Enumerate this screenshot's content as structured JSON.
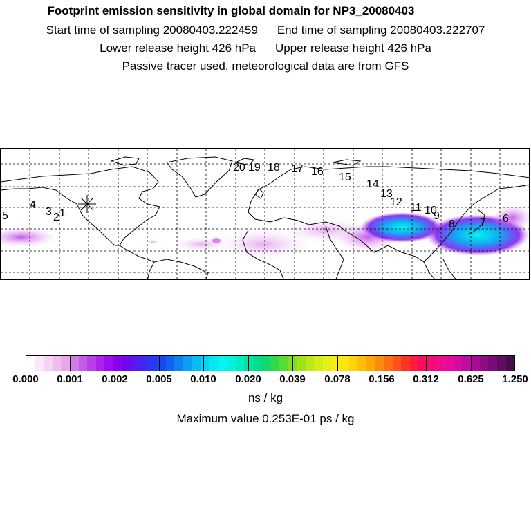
{
  "title": "Footprint emission sensitivity in global domain for NP3_20080403",
  "sampling": {
    "start": "Start time of sampling 20080403.222459",
    "end": "End time of sampling 20080403.222707"
  },
  "release": {
    "lower": "Lower release height  426 hPa",
    "upper": "Upper release height  426 hPa"
  },
  "note": "Passive tracer used, meteorological data are from GFS",
  "map": {
    "point_labels": [
      "20",
      "19",
      "18",
      "17",
      "16",
      "15",
      "14",
      "13",
      "12",
      "11",
      "10",
      "9",
      "8",
      "7",
      "6",
      "5",
      "4",
      "3",
      "2",
      "1"
    ],
    "release_marker": "asterisk",
    "grid": "dashed lat/lon graticule"
  },
  "colorbar": {
    "tick_labels": [
      "0.000",
      "0.001",
      "0.002",
      "0.005",
      "0.010",
      "0.020",
      "0.039",
      "0.078",
      "0.156",
      "0.312",
      "0.625",
      "1.250"
    ],
    "colors": [
      "#ffffff",
      "#fbe9fb",
      "#f6d2f6",
      "#f0bcf0",
      "#eaa6ec",
      "#d47ae6",
      "#c45ce6",
      "#b840ea",
      "#aa22ee",
      "#a00cf2",
      "#8c00f2",
      "#7008ee",
      "#5818f0",
      "#4028f4",
      "#2838f8",
      "#1848f4",
      "#1064f2",
      "#0c82f2",
      "#0aa0f4",
      "#08bcf6",
      "#06d4f6",
      "#04e8f4",
      "#00f6ee",
      "#00f4dc",
      "#00ecc4",
      "#00e4a8",
      "#00de8c",
      "#10d870",
      "#30d84c",
      "#58dc30",
      "#80e020",
      "#a0e418",
      "#bcea18",
      "#d2ee18",
      "#e6f018",
      "#f4ee14",
      "#fce410",
      "#fcd40c",
      "#fcbe08",
      "#fca608",
      "#fc8c0c",
      "#fc7010",
      "#fc5418",
      "#fc3420",
      "#fc1c40",
      "#fc0c60",
      "#f8087a",
      "#f00c8c",
      "#e40c98",
      "#d40c9c",
      "#c00c9c",
      "#a80c94",
      "#900c84",
      "#780c74",
      "#600c60",
      "#480c4c"
    ]
  },
  "units": "ns / kg",
  "max_value": "Maximum value  0.253E-01 ps / kg"
}
